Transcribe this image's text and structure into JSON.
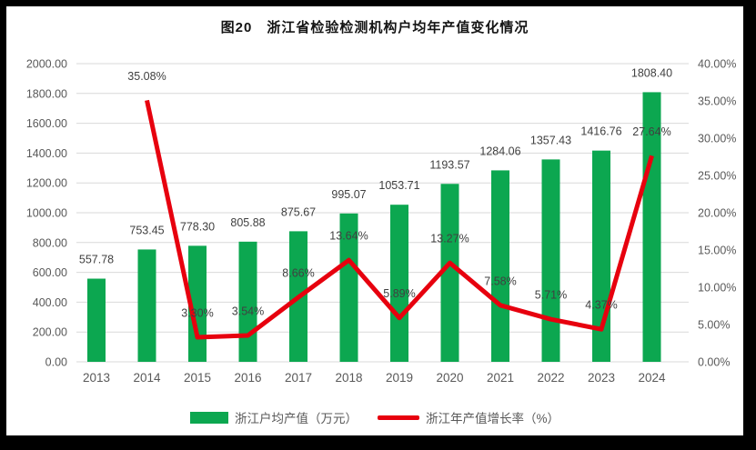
{
  "title": "图20　浙江省检验检测机构户均年产值变化情况",
  "legend": {
    "bar_label": "浙江户均产值（万元）",
    "line_label": "浙江年产值增长率（%）"
  },
  "colors": {
    "bar": "#0ca750",
    "line": "#e7000e",
    "grid": "#d9d9d9",
    "axis_text": "#595959",
    "label_text": "#404040",
    "background": "#ffffff",
    "frame": "#000000"
  },
  "chart_data": {
    "type": "bar",
    "subtype": "bar+line combo",
    "title": "图20　浙江省检验检测机构户均年产值变化情况",
    "categories": [
      "2013",
      "2014",
      "2015",
      "2016",
      "2017",
      "2018",
      "2019",
      "2020",
      "2021",
      "2022",
      "2023",
      "2024"
    ],
    "series": [
      {
        "name": "浙江户均产值（万元）",
        "type": "bar",
        "axis": "left",
        "values": [
          557.78,
          753.45,
          778.3,
          805.88,
          875.67,
          995.07,
          1053.71,
          1193.57,
          1284.06,
          1357.43,
          1416.76,
          1808.4
        ],
        "data_labels": [
          "557.78",
          "753.45",
          "778.30",
          "805.88",
          "875.67",
          "995.07",
          "1053.71",
          "1193.57",
          "1284.06",
          "1357.43",
          "1416.76",
          "1808.40"
        ]
      },
      {
        "name": "浙江年产值增长率（%）",
        "type": "line",
        "axis": "right",
        "values": [
          null,
          35.08,
          3.3,
          3.54,
          8.66,
          13.64,
          5.89,
          13.27,
          7.58,
          5.71,
          4.37,
          27.64
        ],
        "data_labels": [
          null,
          "35.08%",
          "3.30%",
          "3.54%",
          "8.66%",
          "13.64%",
          "5.89%",
          "13.27%",
          "7.58%",
          "5.71%",
          "4.37%",
          "27.64%"
        ]
      }
    ],
    "left_axis": {
      "min": 0,
      "max": 2000,
      "step": 200,
      "tick_labels": [
        "2000.00",
        "1800.00",
        "1600.00",
        "1400.00",
        "1200.00",
        "1000.00",
        "800.00",
        "600.00",
        "400.00",
        "200.00",
        "0.00"
      ]
    },
    "right_axis": {
      "min": 0,
      "max": 40,
      "step": 5,
      "tick_labels": [
        "40.00%",
        "35.00%",
        "30.00%",
        "25.00%",
        "20.00%",
        "15.00%",
        "10.00%",
        "5.00%",
        "0.00%"
      ]
    },
    "grid": true,
    "legend_position": "bottom"
  }
}
